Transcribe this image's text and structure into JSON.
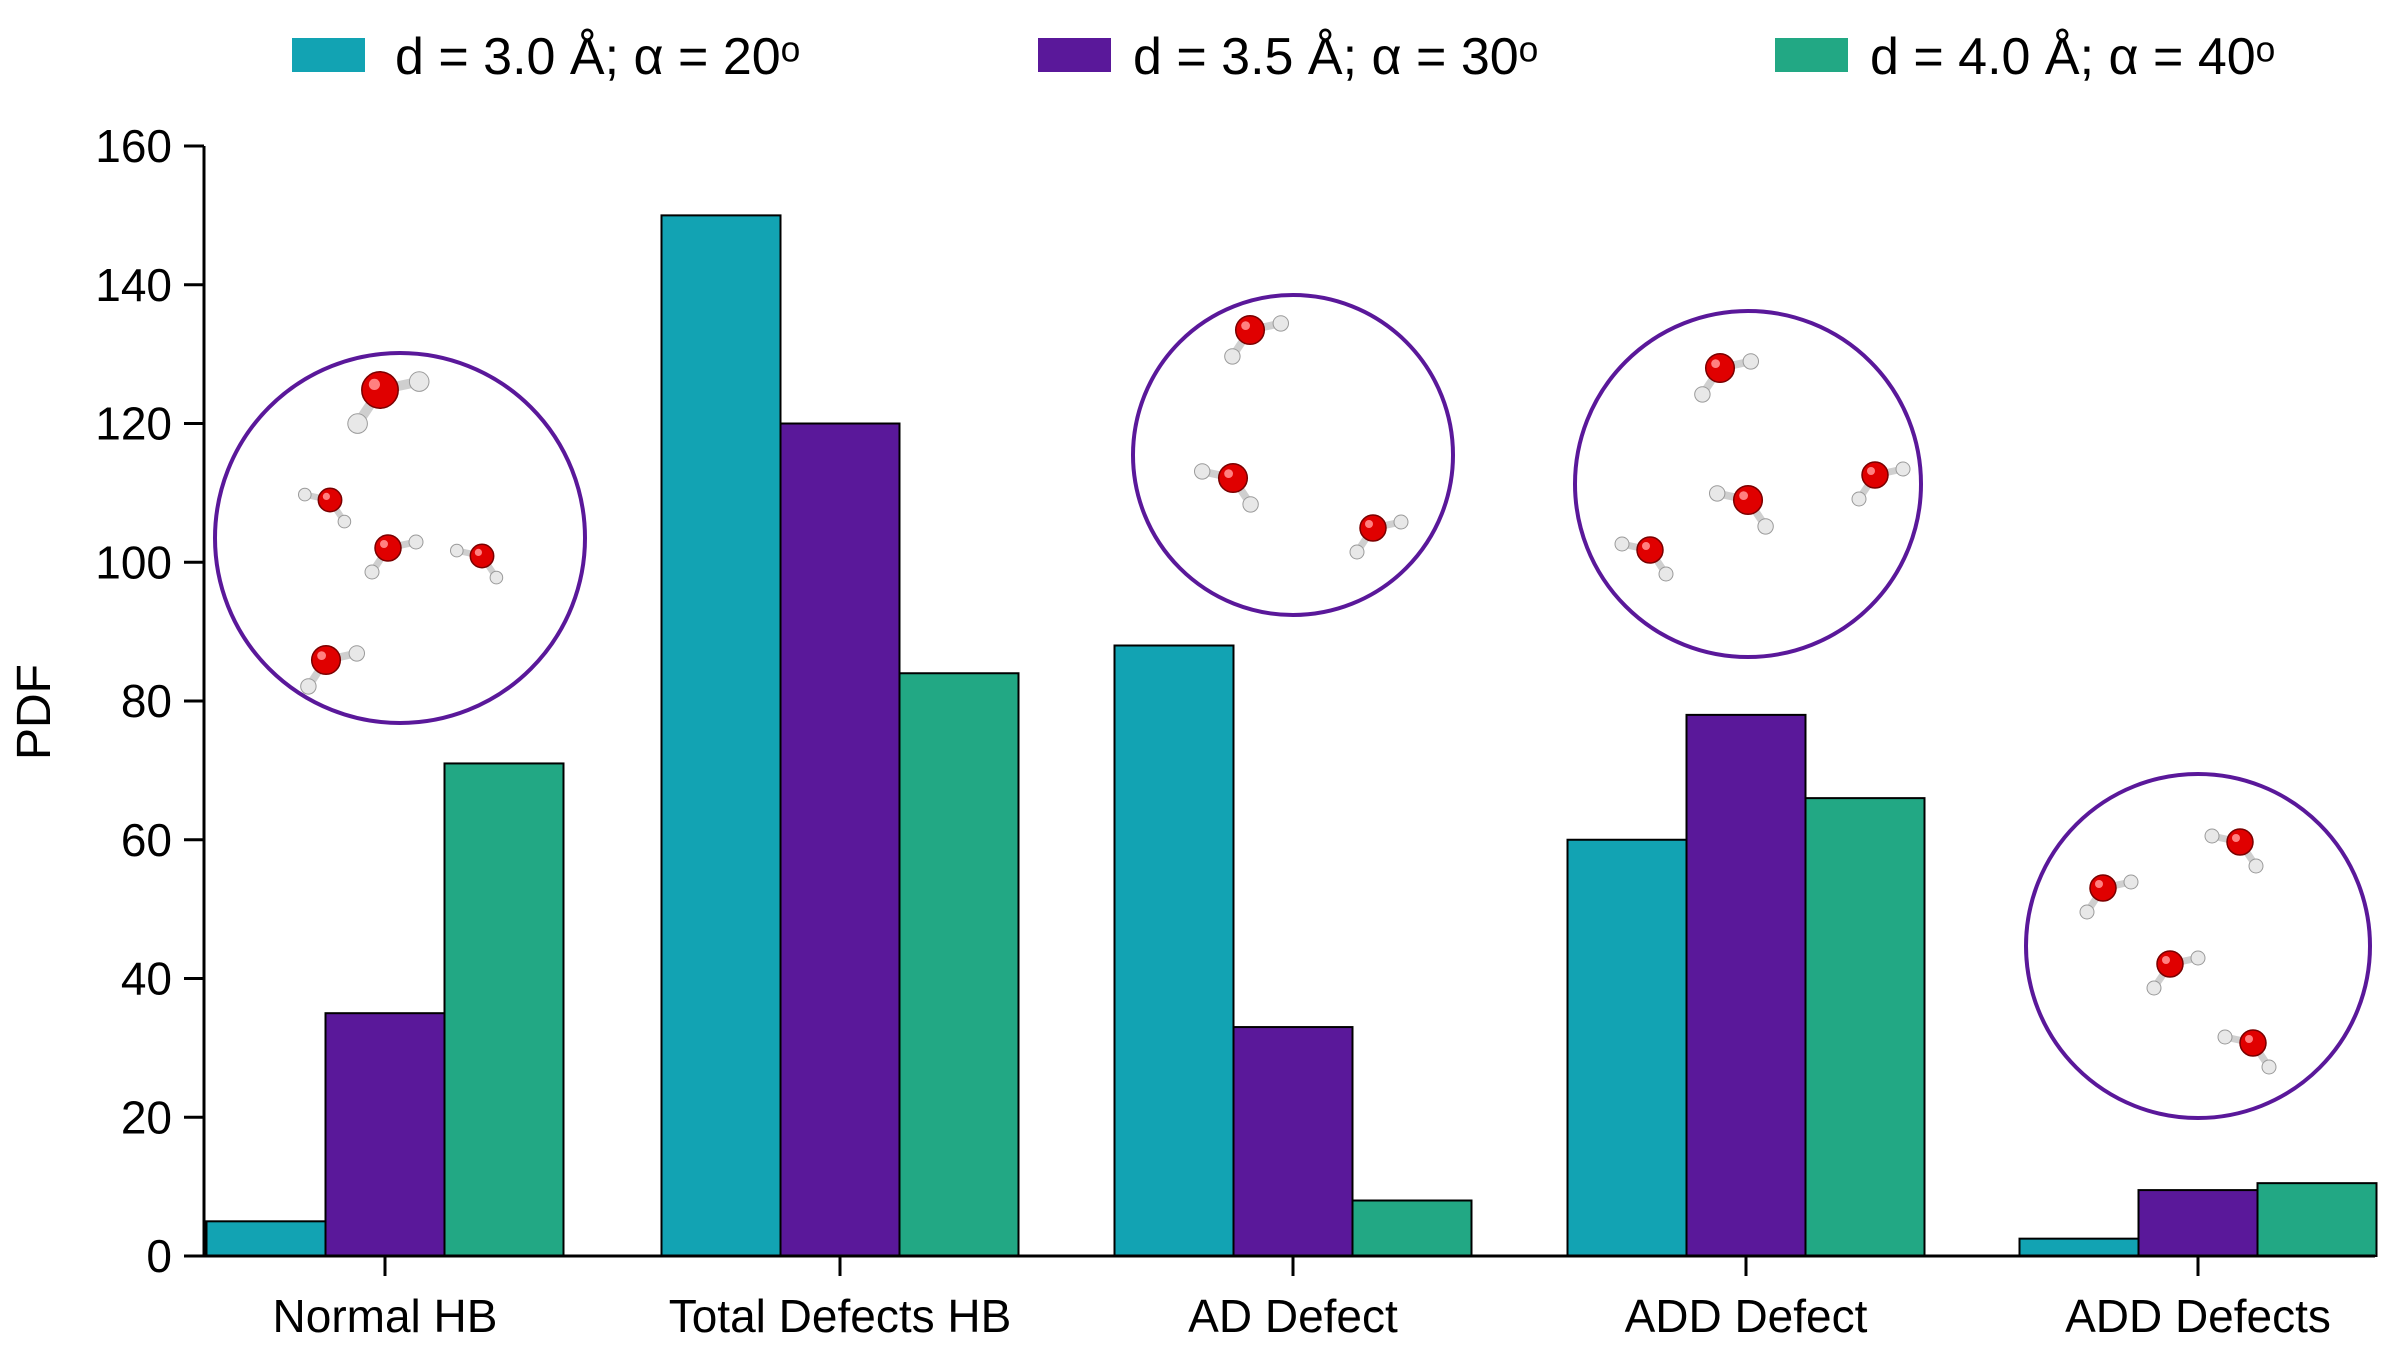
{
  "chart_data": {
    "type": "bar",
    "title": "",
    "xlabel": "",
    "ylabel": "PDF",
    "ylim": [
      0,
      160
    ],
    "yticks": [
      "0",
      "20",
      "40",
      "60",
      "80",
      "100",
      "120",
      "140",
      "160"
    ],
    "categories": [
      "Normal HB",
      "Total Defects HB",
      "AD Defect",
      "ADD Defect",
      "ADD Defects"
    ],
    "series": [
      {
        "name": "d = 3.0 Å; α = 20ᵒ",
        "color": "#12a3b3",
        "values": [
          5,
          150,
          88,
          60,
          2.5
        ]
      },
      {
        "name": "d = 3.5 Å; α = 30ᵒ",
        "color": "#5a189a",
        "values": [
          35,
          120,
          33,
          78,
          9.5
        ]
      },
      {
        "name": "d = 4.0 Å; α = 40ᵒ",
        "color": "#22a884",
        "values": [
          71,
          84,
          8,
          66,
          10.5
        ]
      }
    ],
    "legend_position": "top",
    "grid": false,
    "insets": [
      {
        "category": "Normal HB",
        "icon": "water-cluster-icon",
        "border_color": "#5a189a"
      },
      {
        "category": "AD Defect",
        "icon": "water-cluster-icon",
        "border_color": "#5a189a"
      },
      {
        "category": "ADD Defect",
        "icon": "water-cluster-icon",
        "border_color": "#5a189a"
      },
      {
        "category": "ADD Defects",
        "icon": "water-cluster-icon",
        "border_color": "#5a189a"
      }
    ]
  }
}
